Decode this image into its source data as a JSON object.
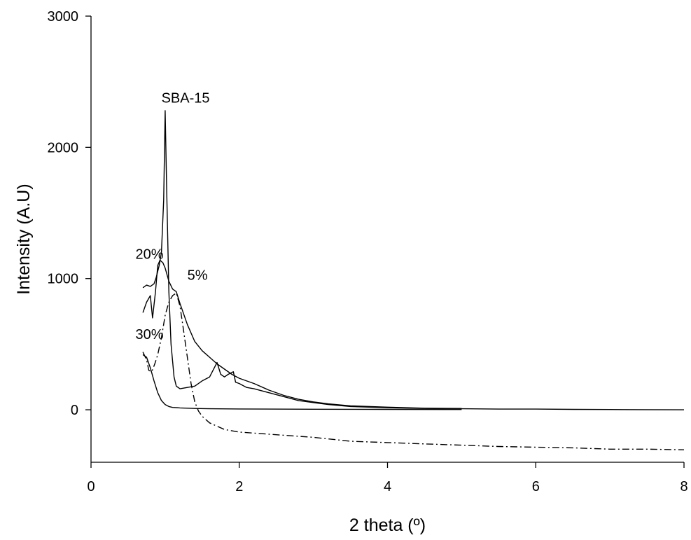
{
  "chart_data": {
    "type": "line",
    "xlabel": "2 theta (º)",
    "ylabel": "Intensity (A.U)",
    "xlim": [
      0,
      8
    ],
    "ylim": [
      -400,
      3000
    ],
    "xticks": [
      0,
      2,
      4,
      6,
      8
    ],
    "yticks": [
      0,
      1000,
      2000,
      3000
    ],
    "grid": false,
    "legend": "none",
    "colors": {
      "line": "#000000",
      "axis": "#000000"
    },
    "annotations": [
      {
        "text": "SBA-15",
        "x": 0.95,
        "y": 2340
      },
      {
        "text": "20%",
        "x": 0.6,
        "y": 1150
      },
      {
        "text": "5%",
        "x": 1.3,
        "y": 990
      },
      {
        "text": "30%",
        "x": 0.6,
        "y": 540
      }
    ],
    "series": [
      {
        "style": "solid",
        "points": [
          [
            0.7,
            930
          ],
          [
            0.75,
            950
          ],
          [
            0.8,
            940
          ],
          [
            0.85,
            960
          ],
          [
            0.88,
            1010
          ],
          [
            0.92,
            1100
          ],
          [
            0.95,
            1200
          ],
          [
            0.98,
            1600
          ],
          [
            1.0,
            2280
          ],
          [
            1.02,
            1700
          ],
          [
            1.05,
            900
          ],
          [
            1.08,
            500
          ],
          [
            1.12,
            250
          ],
          [
            1.15,
            180
          ],
          [
            1.2,
            160
          ],
          [
            1.3,
            170
          ],
          [
            1.4,
            180
          ],
          [
            1.5,
            220
          ],
          [
            1.6,
            250
          ],
          [
            1.7,
            360
          ],
          [
            1.75,
            270
          ],
          [
            1.8,
            250
          ],
          [
            1.85,
            270
          ],
          [
            1.92,
            290
          ],
          [
            1.95,
            210
          ],
          [
            2.0,
            200
          ],
          [
            2.1,
            170
          ],
          [
            2.2,
            160
          ],
          [
            2.4,
            130
          ],
          [
            2.6,
            100
          ],
          [
            2.8,
            70
          ],
          [
            3.0,
            55
          ],
          [
            3.2,
            40
          ],
          [
            3.5,
            25
          ],
          [
            4.0,
            15
          ],
          [
            4.5,
            10
          ],
          [
            5.0,
            8
          ],
          [
            5.5,
            5
          ],
          [
            6.0,
            5
          ],
          [
            6.5,
            3
          ],
          [
            7.0,
            2
          ],
          [
            7.5,
            1
          ],
          [
            8.0,
            0
          ]
        ]
      },
      {
        "style": "solid",
        "points": [
          [
            0.7,
            740
          ],
          [
            0.75,
            820
          ],
          [
            0.8,
            870
          ],
          [
            0.83,
            700
          ],
          [
            0.87,
            900
          ],
          [
            0.9,
            1100
          ],
          [
            0.93,
            1140
          ],
          [
            0.97,
            1120
          ],
          [
            1.0,
            1080
          ],
          [
            1.05,
            980
          ],
          [
            1.1,
            920
          ],
          [
            1.15,
            900
          ],
          [
            1.2,
            810
          ],
          [
            1.3,
            650
          ],
          [
            1.4,
            520
          ],
          [
            1.5,
            450
          ],
          [
            1.6,
            400
          ],
          [
            1.7,
            350
          ],
          [
            1.8,
            310
          ],
          [
            1.9,
            270
          ],
          [
            2.0,
            240
          ],
          [
            2.2,
            200
          ],
          [
            2.4,
            150
          ],
          [
            2.6,
            110
          ],
          [
            2.8,
            80
          ],
          [
            3.0,
            60
          ],
          [
            3.2,
            45
          ],
          [
            3.5,
            30
          ],
          [
            4.0,
            20
          ],
          [
            4.5,
            12
          ],
          [
            5.0,
            10
          ]
        ]
      },
      {
        "style": "dash-dot",
        "points": [
          [
            0.7,
            440
          ],
          [
            0.75,
            380
          ],
          [
            0.78,
            300
          ],
          [
            0.82,
            290
          ],
          [
            0.86,
            350
          ],
          [
            0.9,
            420
          ],
          [
            0.95,
            550
          ],
          [
            1.0,
            720
          ],
          [
            1.05,
            820
          ],
          [
            1.1,
            870
          ],
          [
            1.15,
            890
          ],
          [
            1.2,
            790
          ],
          [
            1.25,
            600
          ],
          [
            1.3,
            400
          ],
          [
            1.35,
            200
          ],
          [
            1.4,
            60
          ],
          [
            1.45,
            -10
          ],
          [
            1.5,
            -50
          ],
          [
            1.6,
            -100
          ],
          [
            1.8,
            -150
          ],
          [
            2.0,
            -170
          ],
          [
            2.5,
            -190
          ],
          [
            3.0,
            -210
          ],
          [
            3.5,
            -240
          ],
          [
            4.0,
            -250
          ],
          [
            4.5,
            -260
          ],
          [
            5.0,
            -270
          ],
          [
            5.5,
            -280
          ],
          [
            6.0,
            -285
          ],
          [
            6.5,
            -290
          ],
          [
            7.0,
            -300
          ],
          [
            7.5,
            -300
          ],
          [
            8.0,
            -305
          ]
        ]
      },
      {
        "style": "solid",
        "points": [
          [
            0.7,
            420
          ],
          [
            0.75,
            400
          ],
          [
            0.8,
            320
          ],
          [
            0.85,
            220
          ],
          [
            0.9,
            130
          ],
          [
            0.95,
            70
          ],
          [
            1.0,
            40
          ],
          [
            1.05,
            25
          ],
          [
            1.1,
            18
          ],
          [
            1.2,
            14
          ],
          [
            1.4,
            10
          ],
          [
            1.6,
            8
          ],
          [
            2.0,
            6
          ],
          [
            3.0,
            4
          ],
          [
            4.0,
            3
          ],
          [
            5.0,
            2
          ]
        ]
      }
    ]
  }
}
